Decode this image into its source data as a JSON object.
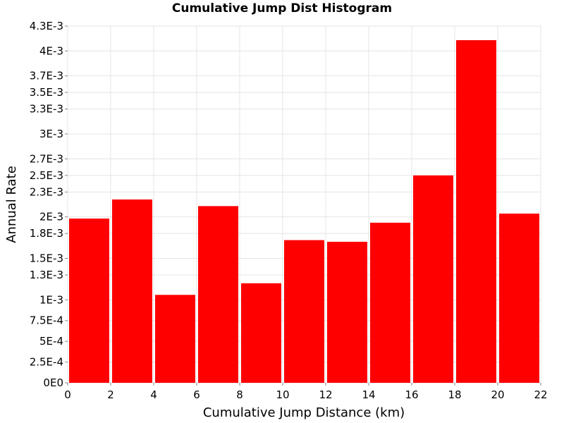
{
  "chart_data": {
    "type": "bar",
    "title": "Cumulative Jump Dist Histogram",
    "xlabel": "Cumulative Jump Distance (km)",
    "ylabel": "Annual Rate",
    "xlim": [
      0,
      22
    ],
    "ylim": [
      0,
      0.0043
    ],
    "x_ticks": [
      "0",
      "2",
      "4",
      "6",
      "8",
      "10",
      "12",
      "14",
      "16",
      "18",
      "20",
      "22"
    ],
    "y_ticks": [
      "0E0",
      "2.5E-4",
      "5E-4",
      "7.5E-4",
      "1E-3",
      "1.3E-3",
      "1.5E-3",
      "1.8E-3",
      "2E-3",
      "2.3E-3",
      "2.5E-3",
      "2.7E-3",
      "3E-3",
      "3.3E-3",
      "3.5E-3",
      "3.7E-3",
      "4E-3",
      "4.3E-3"
    ],
    "bin_edges": [
      0,
      2,
      4,
      6,
      8,
      10,
      12,
      14,
      16,
      18,
      20,
      22
    ],
    "values": [
      0.00198,
      0.00221,
      0.00106,
      0.00213,
      0.0012,
      0.00172,
      0.0017,
      0.00193,
      0.0025,
      0.00413,
      0.00204
    ],
    "bar_color": "#ff0000",
    "grid": true
  }
}
